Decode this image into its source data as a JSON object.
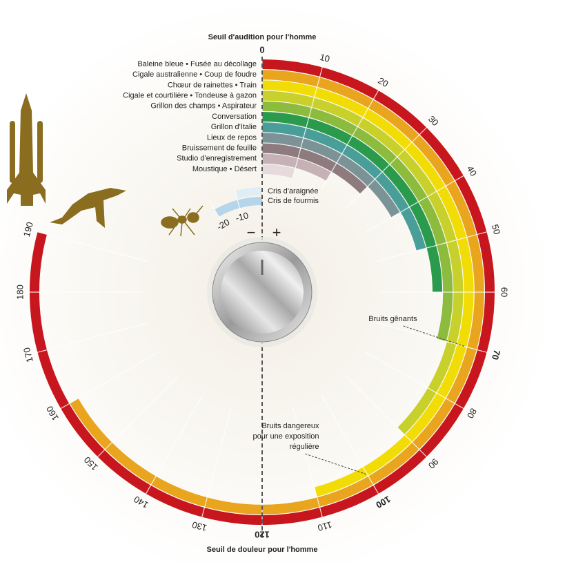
{
  "chart_data": {
    "type": "radial-bar",
    "title_top": "Seuil d'audition pour l'homme",
    "title_bottom": "Seuil de douleur pour l'homme",
    "series": [
      {
        "name": "Baleine bleue • Fusée au décollage",
        "color": "#c8161e",
        "values": [
          0,
          190
        ]
      },
      {
        "name": "Cigale australienne • Coup de foudre",
        "color": "#e8a51d",
        "values": [
          0,
          160
        ]
      },
      {
        "name": "Chœur de rainettes • Train",
        "color": "#f2dc05",
        "values": [
          0,
          110
        ]
      },
      {
        "name": "Cigale et courtilière • Tondeuse à gazon",
        "color": "#c8d12b",
        "values": [
          0,
          90
        ]
      },
      {
        "name": "Grillon des champs • Aspirateur",
        "color": "#8cbb3d",
        "values": [
          0,
          70
        ]
      },
      {
        "name": "Conversation",
        "color": "#2a9a4c",
        "values": [
          0,
          60
        ]
      },
      {
        "name": "Grillon d'Italie",
        "color": "#4a9e99",
        "values": [
          0,
          50
        ]
      },
      {
        "name": "Lieux de repos",
        "color": "#7b9396",
        "values": [
          0,
          40
        ]
      },
      {
        "name": "Bruissement de feuille",
        "color": "#8e7b7f",
        "values": [
          0,
          30
        ]
      },
      {
        "name": "Studio d'enregistrement",
        "color": "#c5b1b6",
        "values": [
          0,
          20
        ]
      },
      {
        "name": "Moustique • Désert",
        "color": "#e6dadd",
        "values": [
          0,
          10
        ]
      }
    ],
    "inner_series": [
      {
        "name": "Cris d'araignée",
        "color": "#dfeef6",
        "values": [
          -10,
          0
        ]
      },
      {
        "name": "Cris de fourmis",
        "color": "#b5d5ea",
        "values": [
          -20,
          0
        ]
      }
    ],
    "ticks": [
      -20,
      -10,
      0,
      10,
      20,
      30,
      40,
      50,
      60,
      70,
      80,
      90,
      100,
      110,
      120,
      130,
      140,
      150,
      160,
      170,
      180,
      190
    ],
    "emphasized_ticks": [
      0,
      70,
      100,
      120
    ],
    "annotations": [
      {
        "lines": [
          "Bruits gênants"
        ],
        "value": 70
      },
      {
        "lines": [
          "Bruits dangereux",
          "pour une exposition",
          "régulière"
        ],
        "value": 100
      }
    ],
    "knob_labels": [
      "−",
      "+"
    ]
  }
}
